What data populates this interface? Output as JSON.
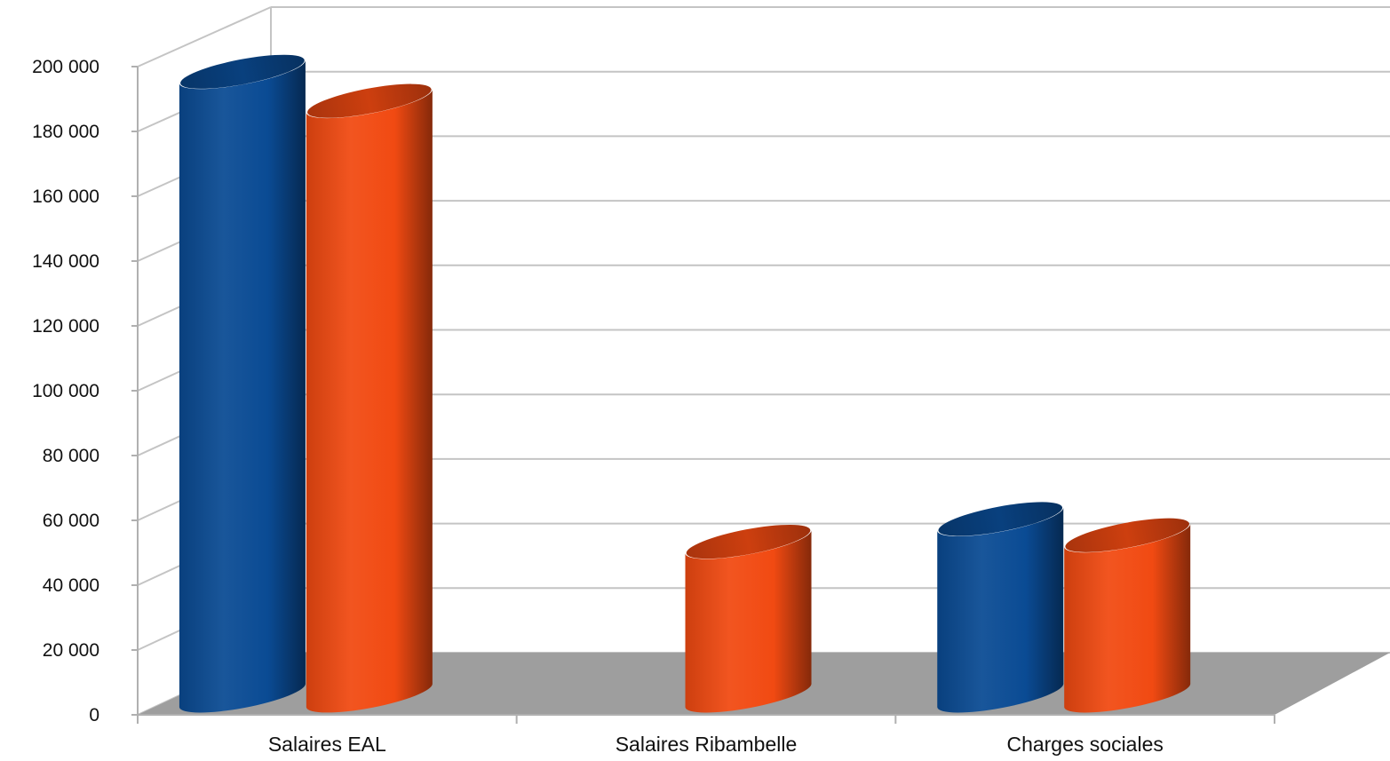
{
  "chart_data": {
    "type": "bar",
    "style": "3d-cylinder",
    "categories": [
      "Salaires EAL",
      "Salaires Ribambelle",
      "Charges sociales"
    ],
    "series": [
      {
        "color": "#0a4b94",
        "values": [
          198000,
          null,
          60000
        ]
      },
      {
        "color": "#f14a12",
        "values": [
          189000,
          53000,
          55000
        ]
      }
    ],
    "yticks": [
      "0",
      "20 000",
      "40 000",
      "60 000",
      "80 000",
      "100 000",
      "120 000",
      "140 000",
      "160 000",
      "180 000",
      "200 000"
    ],
    "ylim": [
      0,
      200000
    ],
    "grid": true,
    "legend": "none",
    "floor_color": "#9e9e9e"
  }
}
